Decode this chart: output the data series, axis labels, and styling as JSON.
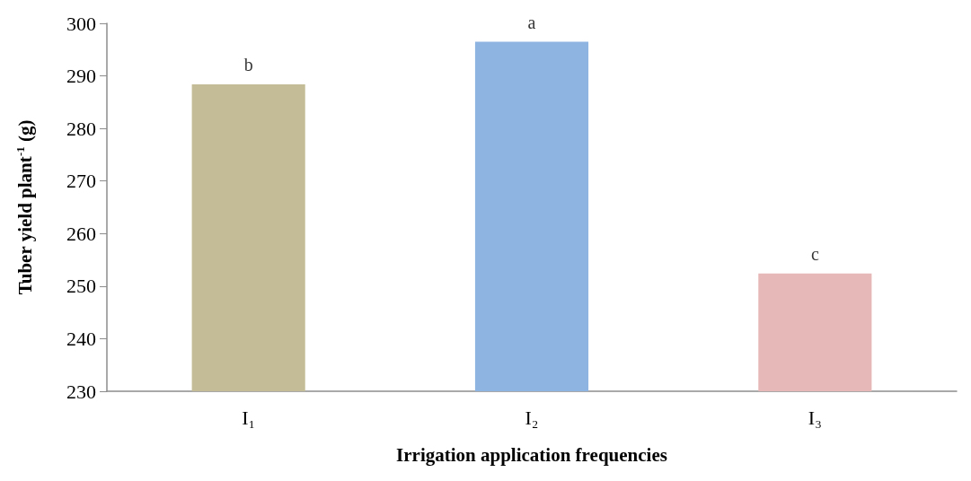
{
  "chart_data": {
    "type": "bar",
    "xlabel": "Irrigation application frequencies",
    "ylabel": "Tuber yield plant$^{-1}$ (g)",
    "categories": [
      "I₁",
      "I₂",
      "I₃"
    ],
    "values": [
      288.4,
      296.5,
      252.4
    ],
    "colors": [
      "#c4bc96",
      "#8eb4e2",
      "#e6b8b7"
    ],
    "ylim": [
      230,
      300
    ],
    "yticks": [
      230,
      240,
      250,
      260,
      270,
      280,
      290,
      300
    ],
    "grid": false,
    "annotations": [
      {
        "text": "b",
        "x": "I₁",
        "y": 288.4
      },
      {
        "text": "a",
        "x": "I₂",
        "y": 296.5
      },
      {
        "text": "c",
        "x": "I₃",
        "y": 252.4
      }
    ]
  }
}
